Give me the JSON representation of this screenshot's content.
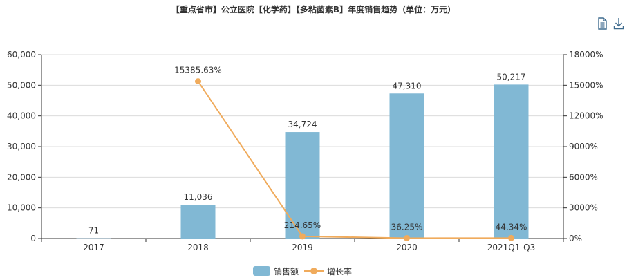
{
  "title": "【重点省市】公立医院【化学药】【多粘菌素B】年度销售趋势（单位：万元）",
  "toolbar": [
    {
      "name": "data-view-icon",
      "icon": "document-icon"
    },
    {
      "name": "download-icon",
      "icon": "download-icon"
    }
  ],
  "chart_data": {
    "type": "bar",
    "categories": [
      "2017",
      "2018",
      "2019",
      "2020",
      "2021Q1-Q3"
    ],
    "series": [
      {
        "name": "销售额",
        "type": "bar",
        "axis": "left",
        "color": "#81b8d4",
        "values": [
          71,
          11036,
          34724,
          47310,
          50217
        ],
        "labels": [
          "71",
          "11,036",
          "34,724",
          "47,310",
          "50,217"
        ]
      },
      {
        "name": "增长率",
        "type": "line",
        "axis": "right",
        "color": "#f0ab5c",
        "values": [
          null,
          15385.63,
          214.65,
          36.25,
          44.34
        ],
        "labels": [
          "",
          "15385.63%",
          "214.65%",
          "36.25%",
          "44.34%"
        ]
      }
    ],
    "y_left": {
      "min": 0,
      "max": 60000,
      "ticks": [
        "0",
        "10,000",
        "20,000",
        "30,000",
        "40,000",
        "50,000",
        "60,000"
      ]
    },
    "y_right": {
      "min": 0,
      "max": 18000,
      "ticks": [
        "0%",
        "3000%",
        "6000%",
        "9000%",
        "12000%",
        "15000%",
        "18000%"
      ]
    },
    "grid": true,
    "legend_position": "bottom-center"
  }
}
